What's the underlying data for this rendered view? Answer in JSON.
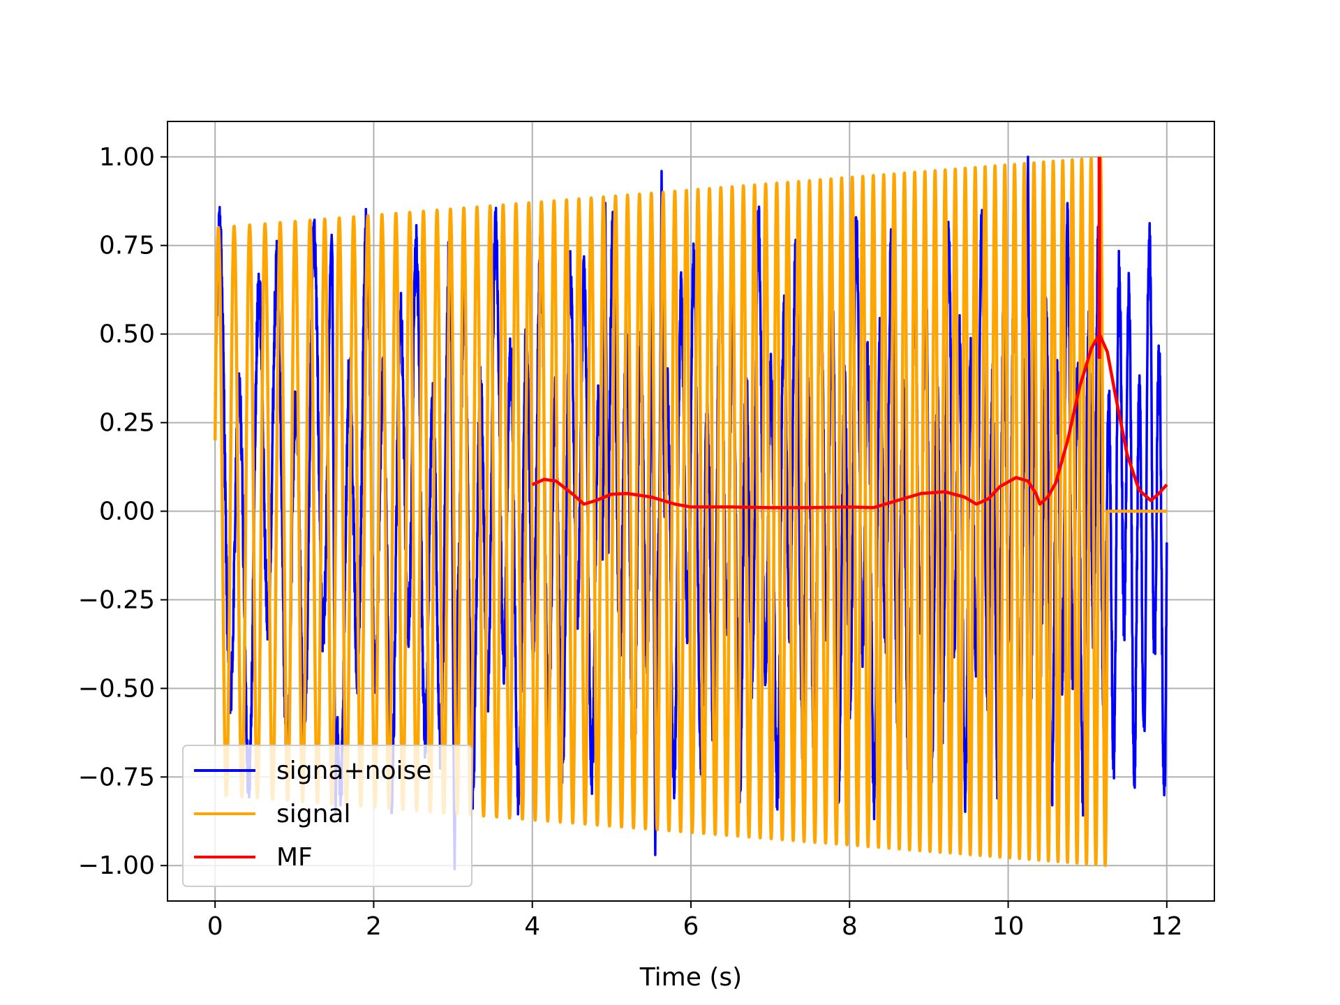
{
  "chart_data": {
    "type": "line",
    "title": "",
    "xlabel": "Time (s)",
    "ylabel": "",
    "xlim": [
      -0.6,
      12.6
    ],
    "ylim": [
      -1.1,
      1.1
    ],
    "grid": true,
    "legend_position": "lower-left",
    "xticks": [
      0,
      2,
      4,
      6,
      8,
      10,
      12
    ],
    "xtick_labels": [
      "0",
      "2",
      "4",
      "6",
      "8",
      "10",
      "12"
    ],
    "yticks": [
      1.0,
      0.75,
      0.5,
      0.25,
      0.0,
      -0.25,
      -0.5,
      -0.75,
      -1.0
    ],
    "ytick_labels": [
      "1.00",
      "0.75",
      "0.50",
      "0.25",
      "0.00",
      "−0.25",
      "−0.50",
      "−0.75",
      "−1.00"
    ],
    "series": [
      {
        "name": "signa+noise",
        "color": "#0000ff",
        "style": "noisy-oscillation",
        "t_start": 0.0,
        "t_end": 12.0,
        "frequency_start_hz": 4.0,
        "frequency_end_hz": 8.0,
        "amplitude": 0.55,
        "peaks": [
          [
            1.47,
            0.78
          ],
          [
            1.52,
            -0.85
          ],
          [
            3.02,
            -1.01
          ],
          [
            4.92,
            0.87
          ],
          [
            5.55,
            -0.97
          ],
          [
            5.63,
            0.96
          ],
          [
            10.25,
            1.0
          ],
          [
            10.38,
            -0.98
          ],
          [
            11.75,
            0.62
          ],
          [
            11.72,
            -0.62
          ]
        ]
      },
      {
        "name": "signal",
        "color": "#ffa500",
        "style": "chirp",
        "t_start": 0.0,
        "t_end": 11.25,
        "frequency_start_hz": 5.0,
        "frequency_end_hz": 8.5,
        "amplitude_start": 0.8,
        "amplitude_end": 1.0,
        "after_end_value": 0.0,
        "after_end_until": 12.0
      },
      {
        "name": "MF",
        "color": "#ff0000",
        "style": "smooth",
        "x": [
          4.0,
          4.15,
          4.3,
          4.5,
          4.65,
          4.8,
          5.0,
          5.2,
          5.5,
          5.8,
          6.0,
          6.5,
          7.0,
          7.5,
          8.0,
          8.3,
          8.6,
          8.9,
          9.2,
          9.45,
          9.6,
          9.75,
          9.9,
          10.1,
          10.25,
          10.35,
          10.4,
          10.5,
          10.6,
          10.75,
          10.9,
          11.05,
          11.15,
          11.25,
          11.35,
          11.5,
          11.65,
          11.8,
          11.9,
          12.0
        ],
        "y": [
          0.075,
          0.09,
          0.085,
          0.05,
          0.02,
          0.03,
          0.048,
          0.05,
          0.04,
          0.02,
          0.012,
          0.012,
          0.01,
          0.01,
          0.012,
          0.01,
          0.03,
          0.05,
          0.055,
          0.04,
          0.02,
          0.035,
          0.07,
          0.095,
          0.085,
          0.05,
          0.02,
          0.04,
          0.08,
          0.2,
          0.35,
          0.46,
          0.5,
          0.45,
          0.33,
          0.16,
          0.06,
          0.03,
          0.05,
          0.075
        ],
        "spike": {
          "x": 11.15,
          "y_min": 0.43,
          "y_max": 1.0
        }
      }
    ]
  }
}
